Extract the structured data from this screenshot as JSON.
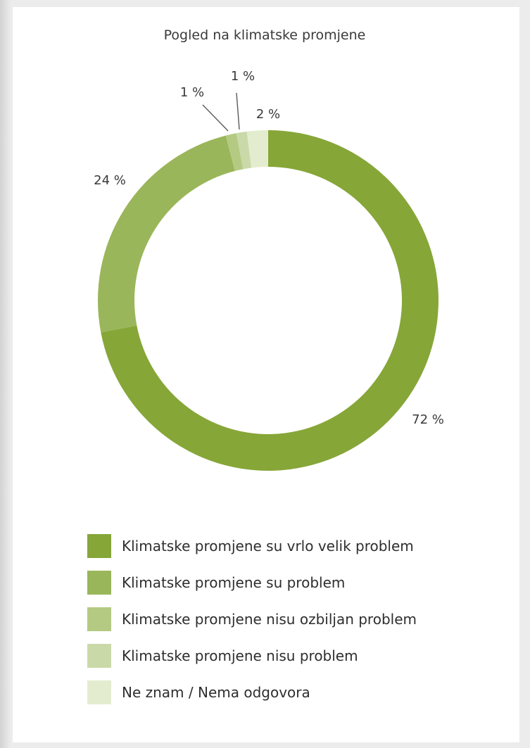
{
  "chart_data": {
    "type": "pie",
    "variant": "donut",
    "title": "Pogled na klimatske promjene",
    "categories": [
      "Klimatske promjene su vrlo velik problem",
      "Klimatske promjene su problem",
      "Klimatske promjene nisu ozbiljan problem",
      "Klimatske promjene nisu problem",
      "Ne znam / Nema odgovora"
    ],
    "values": [
      72,
      24,
      1,
      1,
      2
    ],
    "value_labels": [
      "72 %",
      "24 %",
      "1 %",
      "1 %",
      "2 %"
    ],
    "unit": "%",
    "colors": [
      "#86a638",
      "#9ab65a",
      "#b4ca82",
      "#cad9a8",
      "#e4eccf"
    ],
    "legend_position": "bottom"
  }
}
